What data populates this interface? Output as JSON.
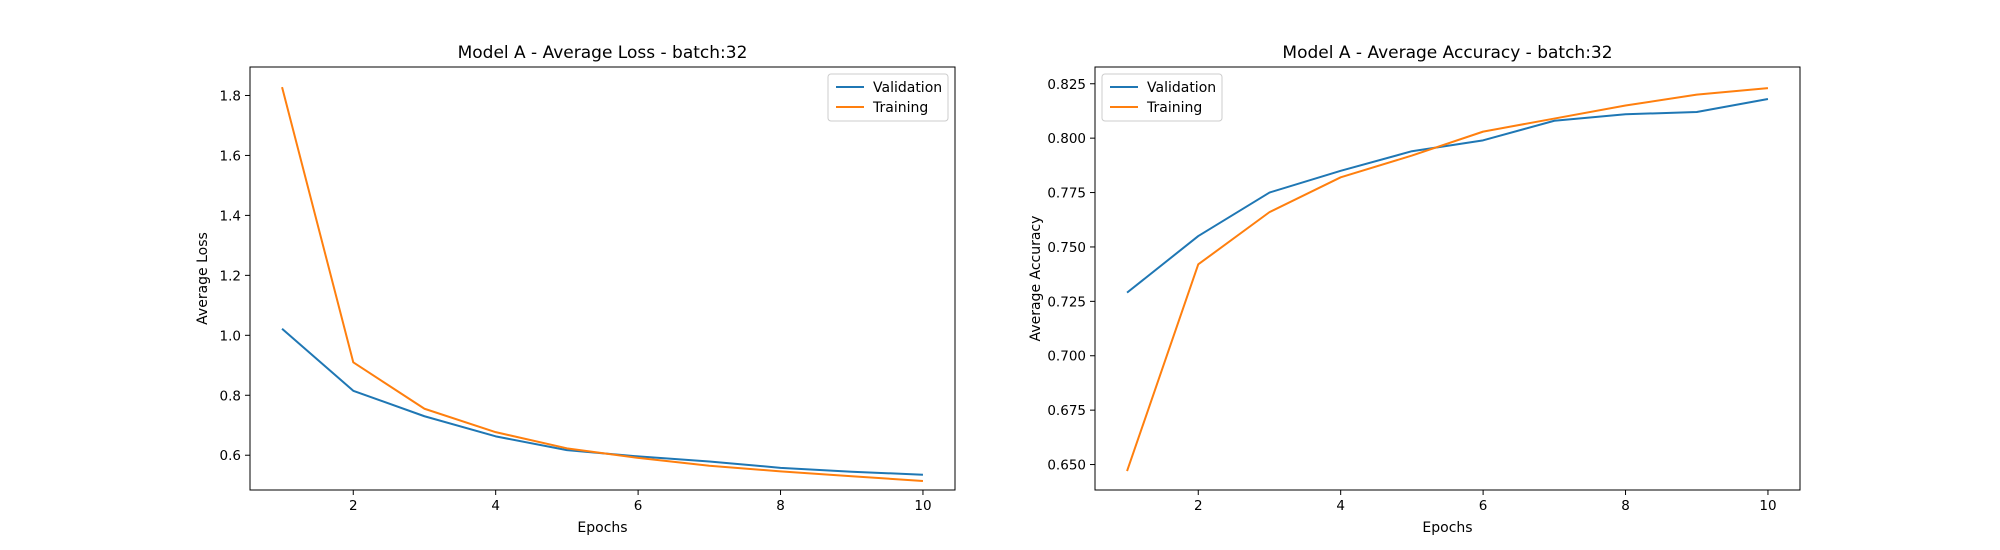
{
  "chart_data": [
    {
      "type": "line",
      "title": "Model A - Average Loss - batch:32",
      "xlabel": "Epochs",
      "ylabel": "Average Loss",
      "x": [
        1,
        2,
        3,
        4,
        5,
        6,
        7,
        8,
        9,
        10
      ],
      "xlim": [
        0.55,
        10.45
      ],
      "ylim": [
        0.484,
        1.895
      ],
      "xticks": [
        2,
        4,
        6,
        8,
        10
      ],
      "yticks": [
        0.6,
        0.8,
        1.0,
        1.2,
        1.4,
        1.6,
        1.8
      ],
      "tick_decimals": 1,
      "grid": false,
      "legend_position": "top-right",
      "series": [
        {
          "name": "Validation",
          "color": "#1f77b4",
          "values": [
            1.022,
            0.815,
            0.73,
            0.663,
            0.617,
            0.596,
            0.579,
            0.558,
            0.545,
            0.535
          ]
        },
        {
          "name": "Training",
          "color": "#ff7f0e",
          "values": [
            1.828,
            0.91,
            0.755,
            0.677,
            0.623,
            0.591,
            0.565,
            0.546,
            0.53,
            0.514
          ]
        }
      ]
    },
    {
      "type": "line",
      "title": "Model A - Average Accuracy - batch:32",
      "xlabel": "Epochs",
      "ylabel": "Average Accuracy",
      "x": [
        1,
        2,
        3,
        4,
        5,
        6,
        7,
        8,
        9,
        10
      ],
      "xlim": [
        0.55,
        10.45
      ],
      "ylim": [
        0.6383,
        0.8327
      ],
      "xticks": [
        2,
        4,
        6,
        8,
        10
      ],
      "yticks": [
        0.65,
        0.675,
        0.7,
        0.725,
        0.75,
        0.775,
        0.8,
        0.825
      ],
      "tick_decimals": 3,
      "grid": false,
      "legend_position": "top-left",
      "series": [
        {
          "name": "Validation",
          "color": "#1f77b4",
          "values": [
            0.729,
            0.755,
            0.775,
            0.785,
            0.794,
            0.799,
            0.808,
            0.811,
            0.812,
            0.818
          ]
        },
        {
          "name": "Training",
          "color": "#ff7f0e",
          "values": [
            0.647,
            0.742,
            0.766,
            0.782,
            0.792,
            0.803,
            0.809,
            0.815,
            0.82,
            0.823
          ]
        }
      ]
    }
  ]
}
